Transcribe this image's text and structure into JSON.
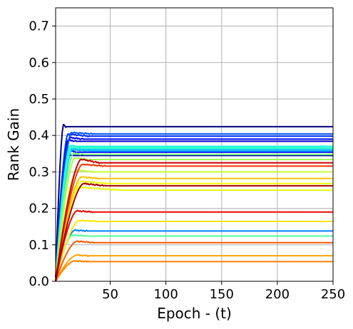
{
  "chart_data": {
    "type": "line",
    "title": "",
    "xlabel": "Epoch - (t)",
    "ylabel": "Rank Gain",
    "xlim": [
      1,
      250
    ],
    "ylim": [
      0,
      0.75
    ],
    "xticks": [
      50,
      100,
      150,
      200,
      250
    ],
    "yticks": [
      0.0,
      0.1,
      0.2,
      0.3,
      0.4,
      0.5,
      0.6,
      0.7
    ],
    "xtick_labels": [
      "50",
      "100",
      "150",
      "200",
      "250"
    ],
    "ytick_labels": [
      "0.0",
      "0.1",
      "0.2",
      "0.3",
      "0.4",
      "0.5",
      "0.6",
      "0.7"
    ],
    "grid": true,
    "legend": "none",
    "colormap": "jet",
    "series": [
      {
        "color": "#00007f",
        "rise_epoch": 8,
        "plateau_epoch": 10,
        "overshoot": 0.006,
        "final": 0.424
      },
      {
        "color": "#00009f",
        "rise_epoch": 10,
        "plateau_epoch": 15,
        "overshoot": 0.004,
        "final": 0.345
      },
      {
        "color": "#0000c8",
        "rise_epoch": 12,
        "plateau_epoch": 20,
        "overshoot": 0.003,
        "final": 0.384
      },
      {
        "color": "#0000f1",
        "rise_epoch": 14,
        "plateau_epoch": 25,
        "overshoot": 0.004,
        "final": 0.39
      },
      {
        "color": "#0010ff",
        "rise_epoch": 14,
        "plateau_epoch": 20,
        "overshoot": 0.004,
        "final": 0.354
      },
      {
        "color": "#0030ff",
        "rise_epoch": 12,
        "plateau_epoch": 30,
        "overshoot": 0.006,
        "final": 0.398
      },
      {
        "color": "#0058ff",
        "rise_epoch": 15,
        "plateau_epoch": 35,
        "overshoot": 0.004,
        "final": 0.404
      },
      {
        "color": "#0080ff",
        "rise_epoch": 18,
        "plateau_epoch": 30,
        "overshoot": 0.002,
        "final": 0.138
      },
      {
        "color": "#00a8ff",
        "rise_epoch": 14,
        "plateau_epoch": 30,
        "overshoot": 0.003,
        "final": 0.358
      },
      {
        "color": "#00d0ff",
        "rise_epoch": 16,
        "plateau_epoch": 25,
        "overshoot": 0.004,
        "final": 0.362
      },
      {
        "color": "#16ffe1",
        "rise_epoch": 14,
        "plateau_epoch": 20,
        "overshoot": 0.003,
        "final": 0.37
      },
      {
        "color": "#36ffc0",
        "rise_epoch": 15,
        "plateau_epoch": 25,
        "overshoot": 0.002,
        "final": 0.366
      },
      {
        "color": "#56ffa0",
        "rise_epoch": 16,
        "plateau_epoch": 30,
        "overshoot": 0.003,
        "final": 0.124
      },
      {
        "color": "#7dff7a",
        "rise_epoch": 17,
        "plateau_epoch": 25,
        "overshoot": 0.003,
        "final": 0.348
      },
      {
        "color": "#a0ff56",
        "rise_epoch": 18,
        "plateau_epoch": 30,
        "overshoot": 0.004,
        "final": 0.334
      },
      {
        "color": "#c0ff36",
        "rise_epoch": 20,
        "plateau_epoch": 35,
        "overshoot": 0.005,
        "final": 0.3
      },
      {
        "color": "#e4ff13",
        "rise_epoch": 22,
        "plateau_epoch": 60,
        "overshoot": 0.008,
        "final": 0.25
      },
      {
        "color": "#f1fc06",
        "rise_epoch": 24,
        "plateau_epoch": 50,
        "overshoot": 0.006,
        "final": 0.268
      },
      {
        "color": "#ffe600",
        "rise_epoch": 22,
        "plateau_epoch": 40,
        "overshoot": 0.003,
        "final": 0.164
      },
      {
        "color": "#ffc400",
        "rise_epoch": 24,
        "plateau_epoch": 40,
        "overshoot": 0.004,
        "final": 0.282
      },
      {
        "color": "#ffa300",
        "rise_epoch": 20,
        "plateau_epoch": 30,
        "overshoot": 0.002,
        "final": 0.07
      },
      {
        "color": "#ff8200",
        "rise_epoch": 18,
        "plateau_epoch": 30,
        "overshoot": 0.002,
        "final": 0.054
      },
      {
        "color": "#ff5900",
        "rise_epoch": 20,
        "plateau_epoch": 35,
        "overshoot": 0.004,
        "final": 0.106
      },
      {
        "color": "#ff3800",
        "rise_epoch": 25,
        "plateau_epoch": 45,
        "overshoot": 0.005,
        "final": 0.316
      },
      {
        "color": "#f10800",
        "rise_epoch": 20,
        "plateau_epoch": 35,
        "overshoot": 0.003,
        "final": 0.19
      },
      {
        "color": "#c80000",
        "rise_epoch": 24,
        "plateau_epoch": 40,
        "overshoot": 0.01,
        "final": 0.325
      },
      {
        "color": "#a80000",
        "rise_epoch": 26,
        "plateau_epoch": 45,
        "overshoot": 0.006,
        "final": 0.262
      }
    ]
  }
}
